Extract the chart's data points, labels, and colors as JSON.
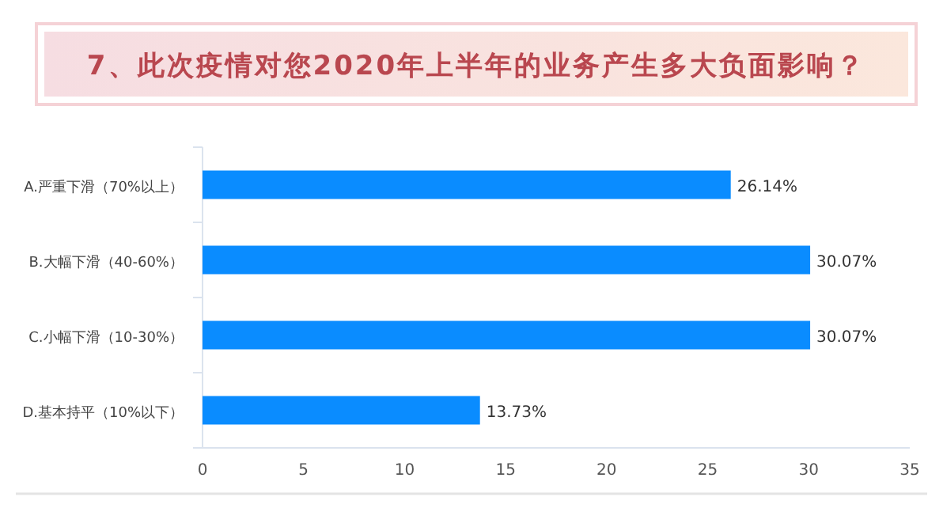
{
  "chart_data": {
    "type": "bar",
    "orientation": "horizontal",
    "title": "7、此次疫情对您2020年上半年的业务产生多大负面影响？",
    "categories": [
      "A.严重下滑（70%以上）",
      "B.大幅下滑（40-60%）",
      "C.小幅下滑（10-30%）",
      "D.基本持平（10%以下）"
    ],
    "values": [
      26.14,
      30.07,
      30.07,
      13.73
    ],
    "value_labels": [
      "26.14%",
      "30.07%",
      "30.07%",
      "13.73%"
    ],
    "color": "#0a8cff",
    "xlim": [
      0,
      35
    ],
    "xticks": [
      0,
      5,
      10,
      15,
      20,
      25,
      30,
      35
    ],
    "grid": false
  }
}
